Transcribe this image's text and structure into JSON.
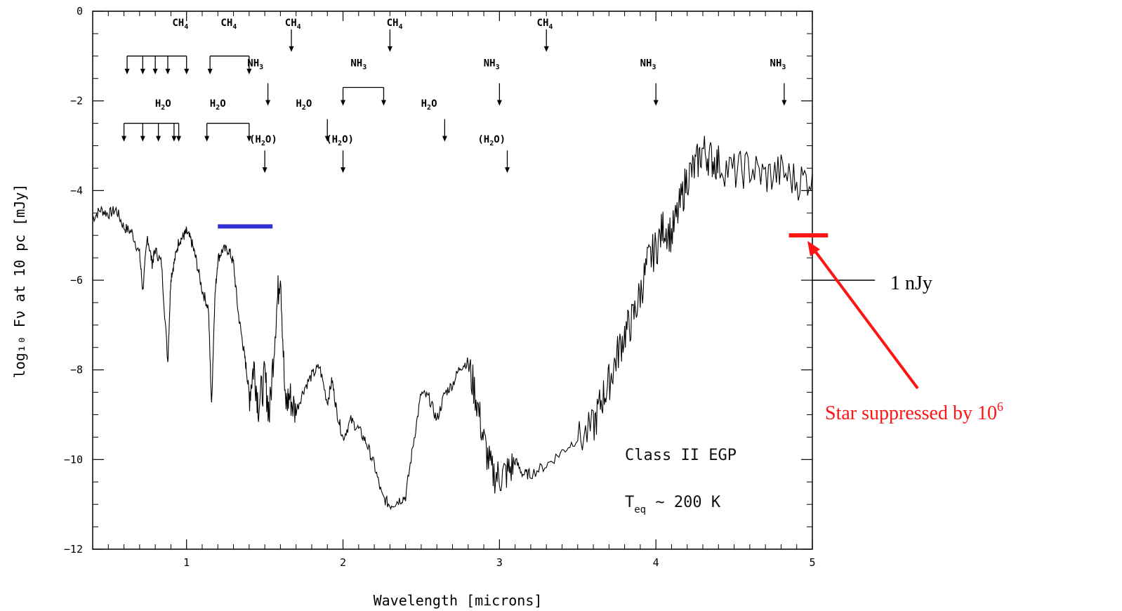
{
  "chart_data": {
    "type": "line",
    "xlabel": "Wavelength  [microns]",
    "ylabel": "log₁₀ Fν at 10 pc [mJy]",
    "xlim": [
      0.4,
      5.0
    ],
    "ylim": [
      -12,
      0
    ],
    "xticks": [
      1,
      2,
      3,
      4,
      5
    ],
    "yticks": [
      0,
      -2,
      -4,
      -6,
      -8,
      -10,
      -12
    ],
    "xtick_labels": [
      "1",
      "2",
      "3",
      "4",
      "5"
    ],
    "ytick_labels": [
      "0",
      "−2",
      "−4",
      "−6",
      "−8",
      "−10",
      "−12"
    ],
    "grid": false,
    "series": [
      {
        "color": "#000000",
        "x": [
          0.4,
          0.45,
          0.5,
          0.55,
          0.6,
          0.65,
          0.7,
          0.72,
          0.75,
          0.78,
          0.8,
          0.84,
          0.88,
          0.9,
          0.92,
          0.95,
          0.98,
          1.0,
          1.03,
          1.06,
          1.1,
          1.14,
          1.16,
          1.18,
          1.2,
          1.23,
          1.27,
          1.3,
          1.33,
          1.36,
          1.38,
          1.4,
          1.43,
          1.46,
          1.5,
          1.53,
          1.57,
          1.6,
          1.63,
          1.66,
          1.7,
          1.75,
          1.8,
          1.85,
          1.9,
          1.93,
          1.96,
          2.0,
          2.05,
          2.1,
          2.15,
          2.2,
          2.25,
          2.3,
          2.35,
          2.4,
          2.45,
          2.5,
          2.55,
          2.6,
          2.65,
          2.7,
          2.75,
          2.8,
          2.85,
          2.9,
          2.95,
          3.0,
          3.05,
          3.1,
          3.15,
          3.2,
          3.3,
          3.4,
          3.5,
          3.6,
          3.65,
          3.7,
          3.75,
          3.8,
          3.85,
          3.9,
          3.95,
          4.0,
          4.05,
          4.1,
          4.15,
          4.2,
          4.25,
          4.3,
          4.35,
          4.4,
          4.5,
          4.6,
          4.7,
          4.8,
          4.9,
          5.0
        ],
        "y": [
          -4.6,
          -4.4,
          -4.5,
          -4.4,
          -4.8,
          -4.9,
          -5.4,
          -6.2,
          -5.0,
          -5.6,
          -5.3,
          -5.6,
          -7.8,
          -5.9,
          -5.6,
          -5.1,
          -5.0,
          -4.9,
          -5.1,
          -5.5,
          -6.2,
          -6.6,
          -8.8,
          -6.4,
          -5.5,
          -5.3,
          -5.3,
          -5.6,
          -6.7,
          -7.4,
          -7.9,
          -8.5,
          -7.8,
          -8.7,
          -8.1,
          -8.9,
          -6.8,
          -5.6,
          -8.7,
          -8.5,
          -8.9,
          -8.4,
          -8.1,
          -7.9,
          -8.7,
          -8.2,
          -8.9,
          -9.5,
          -9.1,
          -9.3,
          -9.6,
          -10.1,
          -10.8,
          -11.0,
          -10.9,
          -10.8,
          -9.6,
          -8.5,
          -8.6,
          -9.1,
          -8.5,
          -8.3,
          -7.9,
          -7.8,
          -8.5,
          -9.5,
          -10.2,
          -10.3,
          -10.2,
          -10.0,
          -10.3,
          -10.3,
          -10.1,
          -9.8,
          -9.5,
          -9.2,
          -8.6,
          -8.2,
          -7.6,
          -7.1,
          -6.8,
          -6.2,
          -5.5,
          -5.2,
          -4.7,
          -4.9,
          -4.3,
          -3.6,
          -3.4,
          -3.0,
          -3.2,
          -3.3,
          -3.5,
          -3.4,
          -3.6,
          -3.5,
          -3.7,
          -3.6
        ]
      }
    ],
    "bands": [
      {
        "color": "#2f2fd2",
        "x": [
          1.2,
          1.55
        ],
        "y": -4.8
      },
      {
        "color": "#ff1414",
        "x": [
          4.85,
          5.1
        ],
        "y": -5.0
      }
    ],
    "reference_lines": [
      {
        "label": "1 nJy",
        "y": -6.0,
        "x": [
          5.0,
          5.4
        ]
      }
    ],
    "annotations": {
      "ch4": [
        {
          "label": "CH",
          "sub": "4",
          "x": 0.96,
          "y": -0.25,
          "bracket": [
            0.62,
            1.0
          ],
          "arrows": [
            0.62,
            0.72,
            0.8,
            0.88,
            1.0
          ],
          "arrow_top": -1.0
        },
        {
          "label": "CH",
          "sub": "4",
          "x": 1.27,
          "y": -0.25,
          "bracket": [
            1.15,
            1.4
          ],
          "arrows": [
            1.15,
            1.4
          ],
          "arrow_top": -1.0
        },
        {
          "label": "CH",
          "sub": "4",
          "x": 1.68,
          "y": -0.25,
          "arrows": [
            1.67
          ],
          "arrow_top": -0.5
        },
        {
          "label": "CH",
          "sub": "4",
          "x": 2.33,
          "y": -0.25,
          "arrows": [
            2.3
          ],
          "arrow_top": -0.5
        },
        {
          "label": "CH",
          "sub": "4",
          "x": 3.29,
          "y": -0.25,
          "arrows": [
            3.3
          ],
          "arrow_top": -0.5
        }
      ],
      "nh3": [
        {
          "label": "NH",
          "sub": "3",
          "x": 1.44,
          "y": -1.15,
          "arrows": [
            1.52
          ],
          "arrow_top": -1.7
        },
        {
          "label": "NH",
          "sub": "3",
          "x": 2.1,
          "y": -1.15,
          "bracket": [
            2.0,
            2.26
          ],
          "arrows": [
            2.0,
            2.26
          ],
          "arrow_top": -1.7
        },
        {
          "label": "NH",
          "sub": "3",
          "x": 2.95,
          "y": -1.15,
          "arrows": [
            3.0
          ],
          "arrow_top": -1.7
        },
        {
          "label": "NH",
          "sub": "3",
          "x": 3.95,
          "y": -1.15,
          "arrows": [
            4.0
          ],
          "arrow_top": -1.7
        },
        {
          "label": "NH",
          "sub": "3",
          "x": 4.78,
          "y": -1.15,
          "arrows": [
            4.82
          ],
          "arrow_top": -1.7
        }
      ],
      "h2o": [
        {
          "label": "H",
          "sub": "2",
          "post": "O",
          "x": 0.85,
          "y": -2.05,
          "bracket": [
            0.6,
            0.95
          ],
          "arrows": [
            0.6,
            0.72,
            0.82,
            0.92,
            0.95
          ],
          "arrow_top": -2.5
        },
        {
          "label": "H",
          "sub": "2",
          "post": "O",
          "x": 1.2,
          "y": -2.05,
          "bracket": [
            1.13,
            1.4
          ],
          "arrows": [
            1.13,
            1.4
          ],
          "arrow_top": -2.5
        },
        {
          "label": "H",
          "sub": "2",
          "post": "O",
          "x": 1.75,
          "y": -2.05,
          "arrows": [
            1.9
          ],
          "arrow_top": -2.5
        },
        {
          "label": "H",
          "sub": "2",
          "post": "O",
          "x": 2.55,
          "y": -2.05,
          "arrows": [
            2.65
          ],
          "arrow_top": -2.5
        }
      ],
      "h2o_paren": [
        {
          "label": "(H",
          "sub": "2",
          "post": "O)",
          "x": 1.49,
          "y": -2.85,
          "arrows": [
            1.5
          ],
          "arrow_top": -3.2
        },
        {
          "label": "(H",
          "sub": "2",
          "post": "O)",
          "x": 1.98,
          "y": -2.85,
          "arrows": [
            2.0
          ],
          "arrow_top": -3.2
        },
        {
          "label": "(H",
          "sub": "2",
          "post": "O)",
          "x": 2.95,
          "y": -2.85,
          "arrows": [
            3.05
          ],
          "arrow_top": -3.2
        }
      ]
    },
    "inset_text": {
      "line1": "Class II EGP",
      "line2_pre": "T",
      "line2_sub": "eq",
      "line2_post": " ~ 200 K"
    },
    "callout": {
      "text": "Star suppressed by 10",
      "sup": "6",
      "color": "#ff1414"
    }
  }
}
